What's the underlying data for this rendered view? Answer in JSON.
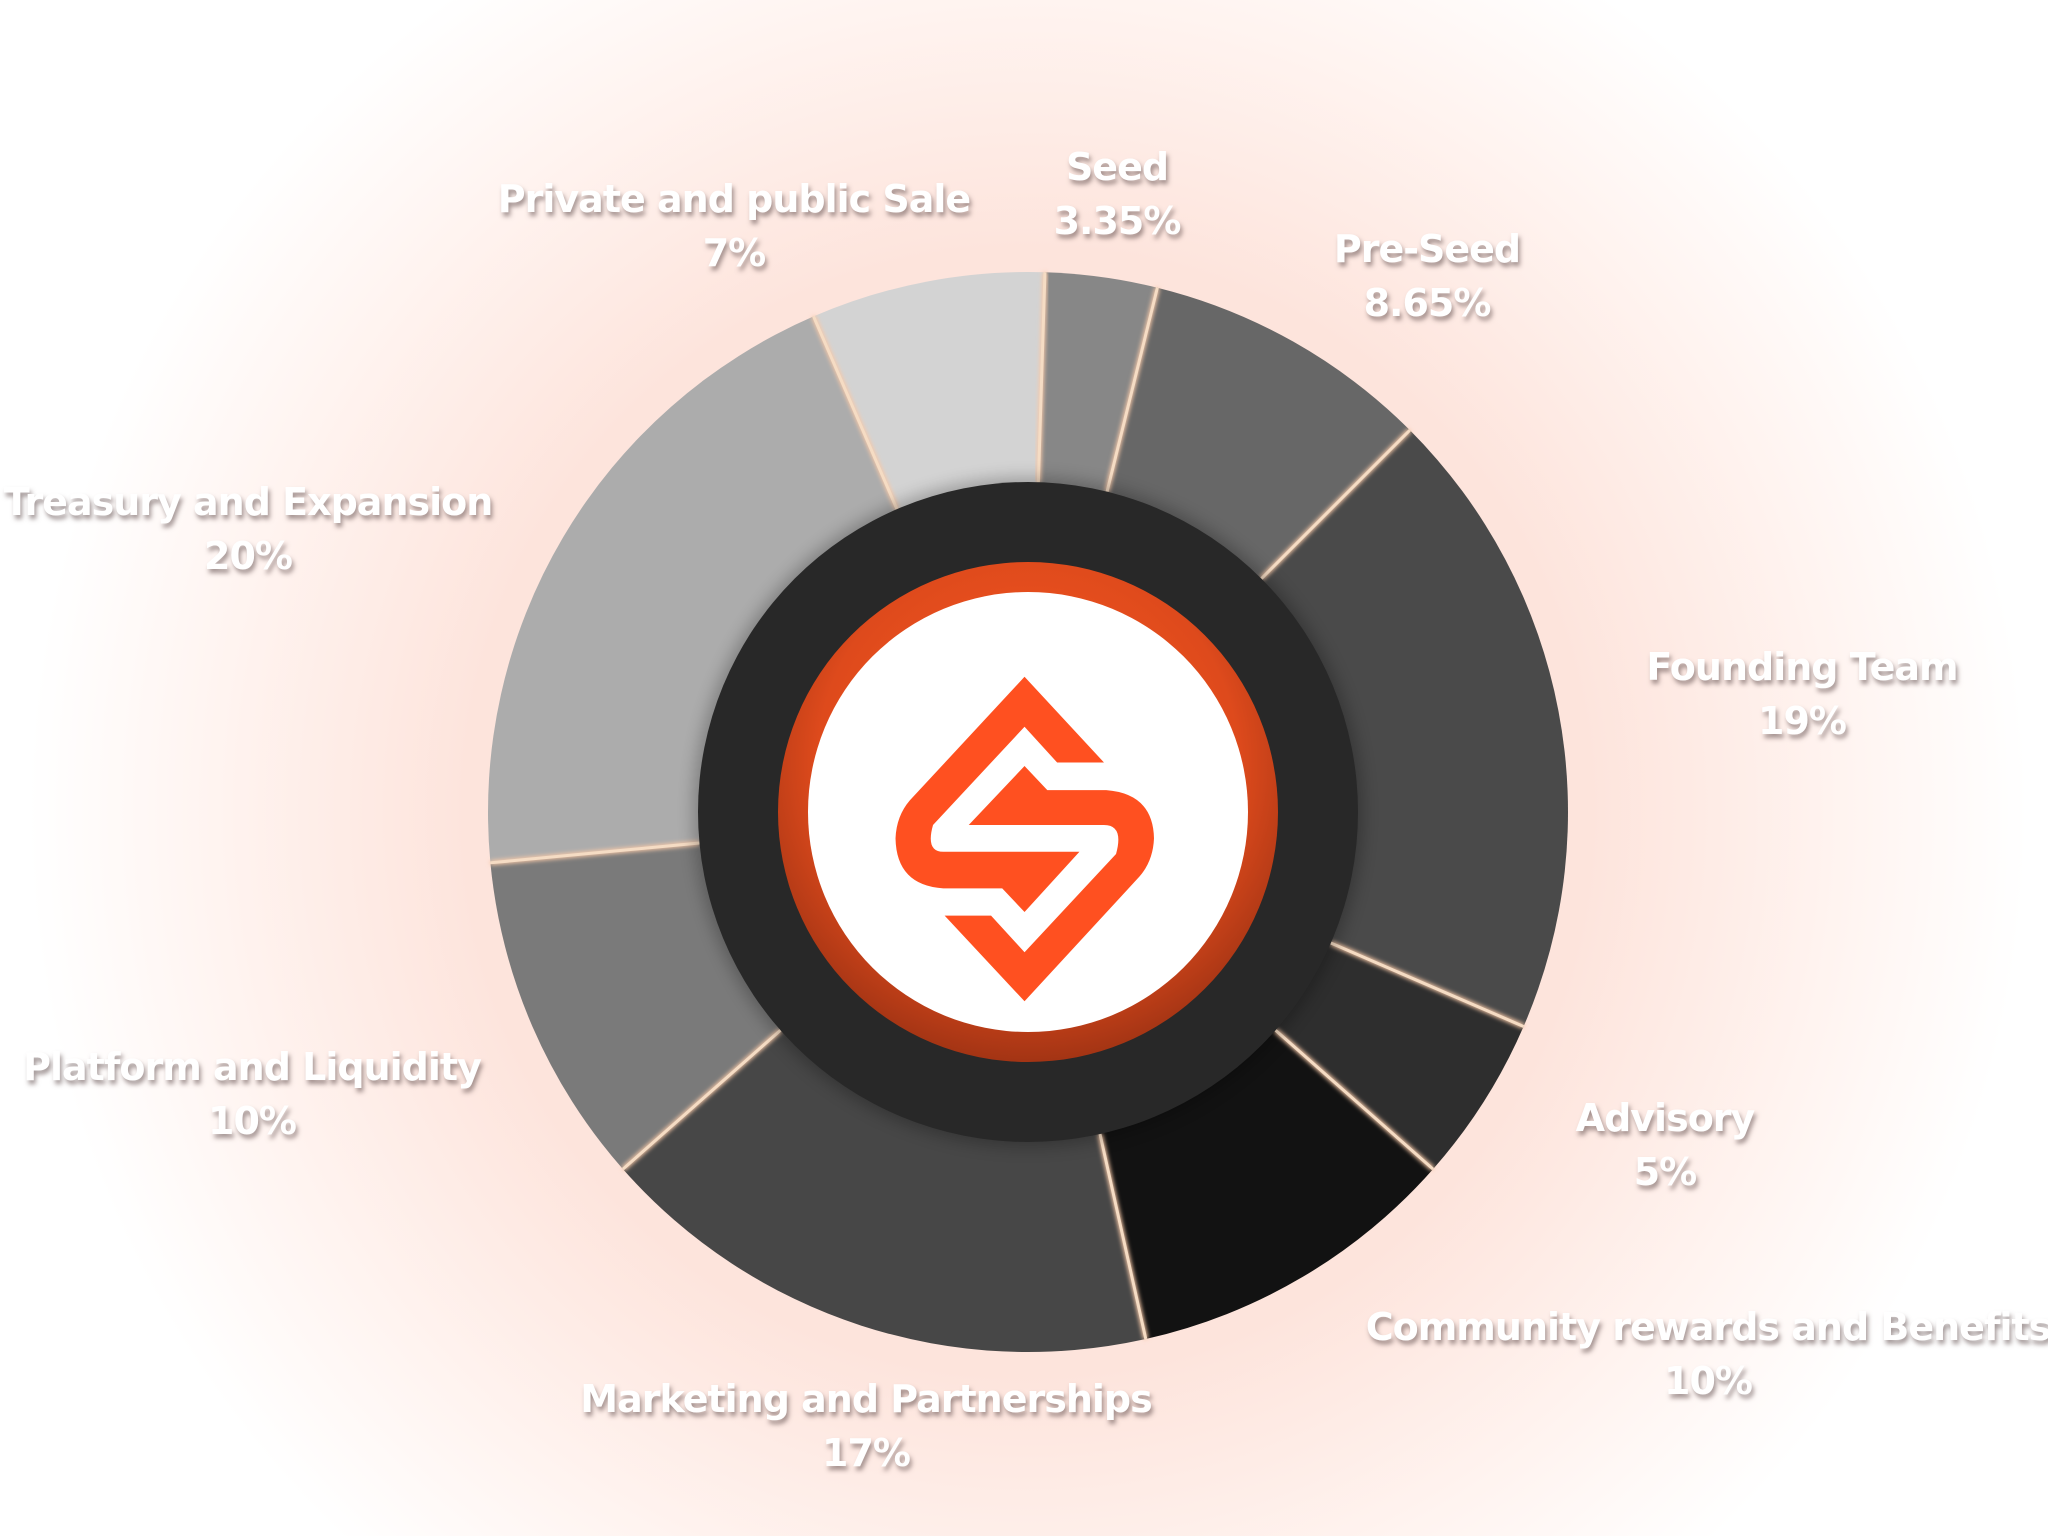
{
  "chart_data": {
    "type": "pie",
    "variant": "donut",
    "start_angle_deg": 1.8,
    "direction": "clockwise",
    "separator_color": "#f5dcc4",
    "slices": [
      {
        "label": "Seed",
        "value": 3.35,
        "value_label": "3.35%",
        "color": "#878787"
      },
      {
        "label": "Pre-Seed",
        "value": 8.65,
        "value_label": "8.65%",
        "color": "#676767"
      },
      {
        "label": "Founding Team",
        "value": 19,
        "value_label": "19%",
        "color": "#4a4a4a"
      },
      {
        "label": "Advisory",
        "value": 5,
        "value_label": "5%",
        "color": "#2e2e2e"
      },
      {
        "label": "Community rewards and Benefits",
        "value": 10,
        "value_label": "10%",
        "color": "#121212"
      },
      {
        "label": "Marketing and Partnerships",
        "value": 17,
        "value_label": "17%",
        "color": "#474747"
      },
      {
        "label": "Platform and Liquidity",
        "value": 10,
        "value_label": "10%",
        "color": "#7a7a7a"
      },
      {
        "label": "Treasury and Expansion",
        "value": 20,
        "value_label": "20%",
        "color": "#acacac"
      },
      {
        "label": "Private and public Sale",
        "value": 7,
        "value_label": "7%",
        "color": "#d3d3d3"
      }
    ]
  },
  "center_logo": {
    "icon": "s-diamond-logo-icon",
    "accent": "#ff5020",
    "ring_color": "#e04a1c",
    "hub_color": "#282828"
  }
}
